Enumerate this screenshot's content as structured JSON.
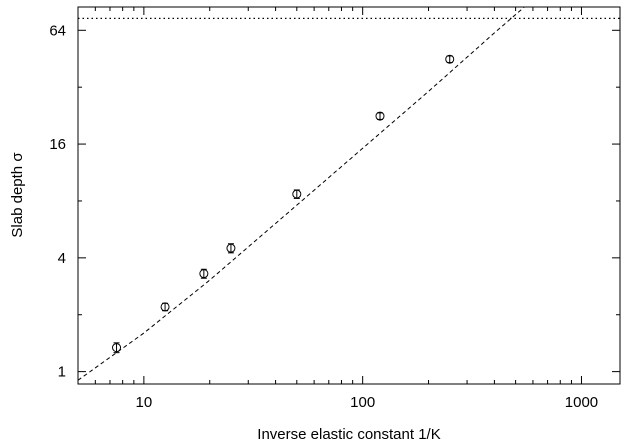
{
  "chart_data": {
    "type": "scatter",
    "xlabel": "Inverse elastic constant 1/K",
    "ylabel": "Slab depth σ",
    "x_scale": "log",
    "y_scale": "log2",
    "xlim": [
      5,
      1500
    ],
    "ylim": [
      0.86,
      85
    ],
    "x_ticks": [
      10,
      100,
      1000
    ],
    "x_tick_labels": [
      "10",
      "100",
      "1000"
    ],
    "y_ticks": [
      1,
      4,
      16,
      64
    ],
    "y_tick_labels": [
      "1",
      "4",
      "16",
      "64"
    ],
    "grid": false,
    "legend": "none",
    "points": [
      {
        "x": 7.5,
        "y": 1.34,
        "err": 0.08
      },
      {
        "x": 12.5,
        "y": 2.2,
        "err": 0.1
      },
      {
        "x": 18.8,
        "y": 3.3,
        "err": 0.18
      },
      {
        "x": 25,
        "y": 4.5,
        "err": 0.25
      },
      {
        "x": 50,
        "y": 8.7,
        "err": 0.45
      },
      {
        "x": 120,
        "y": 22.5,
        "err": 0.9
      },
      {
        "x": 250,
        "y": 45,
        "err": 1.8
      }
    ],
    "fit_line": {
      "style": "dashed",
      "x": [
        5,
        10,
        20,
        50,
        100,
        200,
        400,
        600
      ],
      "y": [
        0.9,
        1.6,
        3.05,
        7.6,
        15.2,
        30.4,
        62,
        93
      ]
    },
    "horizontal_line": {
      "style": "dotted",
      "y": 74
    },
    "colors": {
      "axes": "#000000",
      "markers": "#000000",
      "lines": "#000000"
    }
  }
}
